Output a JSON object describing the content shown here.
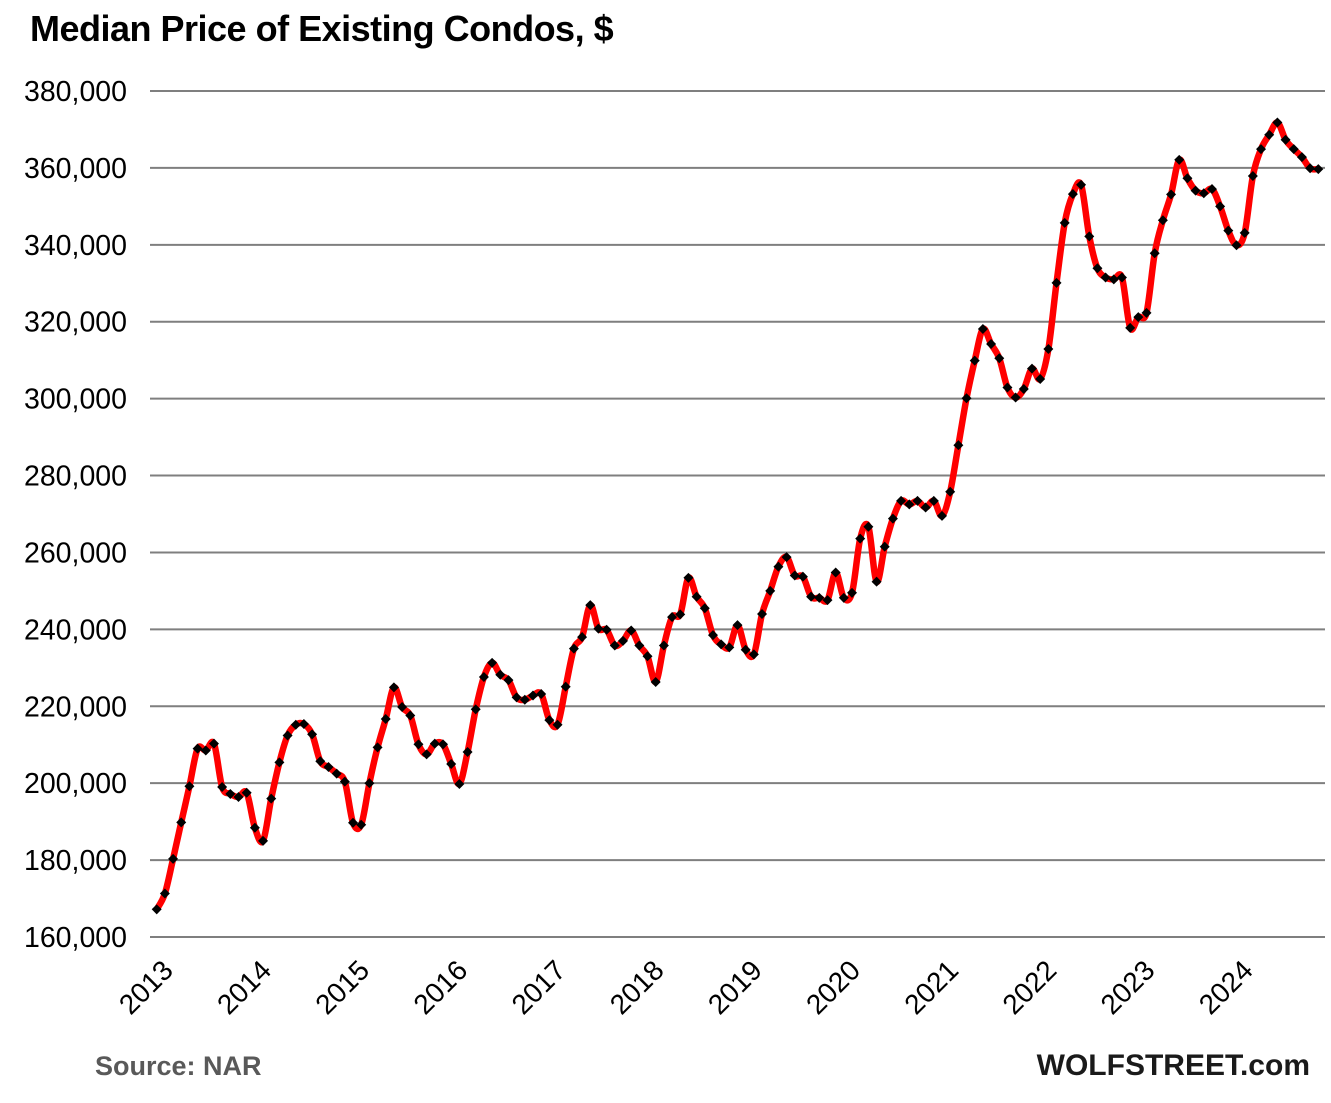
{
  "page": {
    "title": "Median Price of Existing Condos, $",
    "source_note": "Source: NAR",
    "branding": "WOLFSTREET.com"
  },
  "colors": {
    "line": "#ff0000",
    "marker": "#000000",
    "gridline": "#7f7f7f",
    "tick_text": "#000000",
    "source_text": "#595959",
    "branding_text": "#1a1a1a",
    "background": "#ffffff"
  },
  "chart_data": {
    "type": "line",
    "title": "Median Price of Existing Condos, $",
    "xlabel": "",
    "ylabel": "",
    "frequency": "monthly",
    "x_start": "2013-01",
    "x_end": "2024-11",
    "ylim": [
      160000,
      380000
    ],
    "grid": "horizontal",
    "legend": "none",
    "marker_shape": "diamond",
    "x_tick_labels": [
      "2013",
      "2014",
      "2015",
      "2016",
      "2017",
      "2018",
      "2019",
      "2020",
      "2021",
      "2022",
      "2023",
      "2024"
    ],
    "y_ticks": [
      {
        "value": 380000,
        "label": "380,000"
      },
      {
        "value": 360000,
        "label": "360,000"
      },
      {
        "value": 340000,
        "label": "340,000"
      },
      {
        "value": 320000,
        "label": "320,000"
      },
      {
        "value": 300000,
        "label": "300,000"
      },
      {
        "value": 280000,
        "label": "280,000"
      },
      {
        "value": 260000,
        "label": "260,000"
      },
      {
        "value": 240000,
        "label": "240,000"
      },
      {
        "value": 220000,
        "label": "220,000"
      },
      {
        "value": 200000,
        "label": "200,000"
      },
      {
        "value": 180000,
        "label": "180,000"
      },
      {
        "value": 160000,
        "label": "160,000"
      }
    ],
    "series": [
      {
        "name": "Median price of existing condos",
        "color": "#ff0000",
        "marker_color": "#000000",
        "values_by_year": {
          "2013": [
            167200,
            171300,
            180300,
            189800,
            199200,
            209000,
            208500,
            210300,
            199000,
            197200,
            196400,
            197500
          ],
          "2014": [
            188400,
            185000,
            196000,
            205400,
            212400,
            215200,
            215400,
            212700,
            205700,
            204200,
            202500,
            200400
          ],
          "2015": [
            189700,
            189200,
            200000,
            209300,
            216700,
            224900,
            219800,
            217600,
            210100,
            207500,
            210300,
            210100
          ],
          "2016": [
            205000,
            199800,
            208100,
            219200,
            227600,
            231300,
            228200,
            226800,
            222300,
            221700,
            222800,
            223200
          ],
          "2017": [
            216400,
            215200,
            225100,
            235000,
            238000,
            246300,
            240200,
            239900,
            235800,
            237000,
            239700,
            235800
          ],
          "2018": [
            233000,
            226300,
            235800,
            243200,
            243900,
            253400,
            248500,
            245500,
            238500,
            236100,
            235300,
            241100
          ],
          "2019": [
            234700,
            233500,
            244000,
            250000,
            256300,
            258800,
            254000,
            253700,
            248500,
            248200,
            247600,
            254800
          ],
          "2020": [
            248200,
            249500,
            263600,
            266700,
            252400,
            261500,
            268800,
            273400,
            272500,
            273400,
            271700,
            273400
          ],
          "2021": [
            269500,
            275800,
            287900,
            300100,
            309900,
            318100,
            314200,
            310500,
            302900,
            300300,
            302500,
            307800
          ],
          "2022": [
            305100,
            312900,
            330100,
            345700,
            353200,
            355600,
            342200,
            333900,
            331500,
            331000,
            331500,
            318400
          ],
          "2023": [
            321200,
            322300,
            337800,
            346400,
            353100,
            362100,
            357300,
            354100,
            353400,
            354500,
            350000,
            343700
          ],
          "2024": [
            339900,
            343100,
            357900,
            364900,
            368600,
            371800,
            367300,
            364900,
            362800,
            359900,
            359700
          ]
        }
      }
    ]
  }
}
